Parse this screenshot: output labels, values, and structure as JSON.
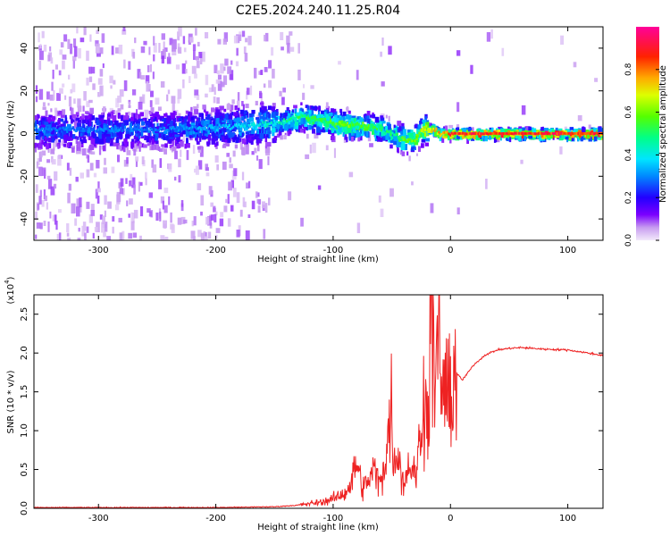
{
  "figure_title": "C2E5.2024.240.11.25.R04",
  "chart_data": [
    {
      "type": "heatmap",
      "xlabel": "Height of straight line (km)",
      "ylabel": "Frequency (Hz)",
      "xlim": [
        -355,
        130
      ],
      "ylim": [
        -50,
        50
      ],
      "xticks": [
        -300,
        -200,
        -100,
        0,
        100
      ],
      "xtick_labels": [
        "-300",
        "-200",
        "-100",
        "0",
        "100"
      ],
      "yticks": [
        -40,
        -20,
        0,
        20,
        40
      ],
      "ytick_labels": [
        "-40",
        "-20",
        "0",
        "20",
        "40"
      ],
      "colorbar": {
        "label": "Normalized spectral amplitude",
        "range": [
          0,
          1
        ],
        "ticks": [
          0.0,
          0.2,
          0.4,
          0.6,
          0.8
        ],
        "tick_labels": [
          "0.0",
          "0.2",
          "0.4",
          "0.6",
          "0.8"
        ],
        "colormap": [
          "#e6d4f5",
          "#7b00ff",
          "#0000ff",
          "#00ccff",
          "#00ff66",
          "#99ff00",
          "#ffff00",
          "#ff8800",
          "#ff0000",
          "#ff0099"
        ]
      },
      "trace": {
        "x": [
          -350,
          -300,
          -250,
          -200,
          -170,
          -150,
          -135,
          -125,
          -110,
          -100,
          -90,
          -80,
          -70,
          -60,
          -50,
          -40,
          -30,
          -25,
          -15,
          -10,
          0,
          50,
          130
        ],
        "frequency": [
          2,
          2,
          2,
          3,
          4,
          5,
          7,
          8,
          6,
          5,
          4,
          4,
          3,
          2,
          0,
          -3,
          -2,
          2,
          2,
          0,
          0,
          0,
          0
        ],
        "peak_amplitude": [
          0.3,
          0.3,
          0.3,
          0.35,
          0.4,
          0.45,
          0.5,
          0.55,
          0.55,
          0.6,
          0.62,
          0.6,
          0.58,
          0.5,
          0.5,
          0.6,
          0.65,
          0.7,
          0.75,
          0.8,
          0.9,
          0.92,
          0.92
        ]
      },
      "grid": false
    },
    {
      "type": "line",
      "xlabel": "Height of straight line (km)",
      "ylabel": "SNR (10 * v/v)",
      "yunit_multiplier": "(x10",
      "yunit_exponent": "4",
      "xlim": [
        -355,
        130
      ],
      "ylim": [
        0,
        2.75
      ],
      "xticks": [
        -300,
        -200,
        -100,
        0,
        100
      ],
      "xtick_labels": [
        "-300",
        "-200",
        "-100",
        "0",
        "100"
      ],
      "yticks": [
        0.0,
        0.5,
        1.0,
        1.5,
        2.0,
        2.5
      ],
      "ytick_labels": [
        "0.0",
        "0.5",
        "1.0",
        "1.5",
        "2.0",
        "2.5"
      ],
      "series": [
        {
          "color": "#ee2222",
          "x": [
            -355,
            -300,
            -250,
            -200,
            -150,
            -130,
            -110,
            -100,
            -90,
            -85,
            -80,
            -75,
            -70,
            -65,
            -60,
            -55,
            -50,
            -48,
            -45,
            -40,
            -35,
            -30,
            -25,
            -22,
            -20,
            -17,
            -15,
            -13,
            -10,
            -8,
            -5,
            -3,
            0,
            5,
            10,
            20,
            30,
            40,
            50,
            60,
            80,
            100,
            130
          ],
          "y": [
            0.01,
            0.01,
            0.01,
            0.01,
            0.02,
            0.04,
            0.08,
            0.12,
            0.2,
            0.3,
            0.6,
            0.25,
            0.35,
            0.5,
            0.3,
            0.7,
            1.3,
            0.5,
            0.8,
            0.3,
            0.6,
            0.4,
            1.0,
            1.75,
            0.9,
            2.3,
            2.75,
            1.2,
            2.6,
            1.4,
            1.7,
            1.2,
            1.55,
            1.75,
            1.65,
            1.85,
            1.98,
            2.04,
            2.06,
            2.07,
            2.05,
            2.04,
            1.97
          ]
        }
      ],
      "grid": false
    }
  ]
}
